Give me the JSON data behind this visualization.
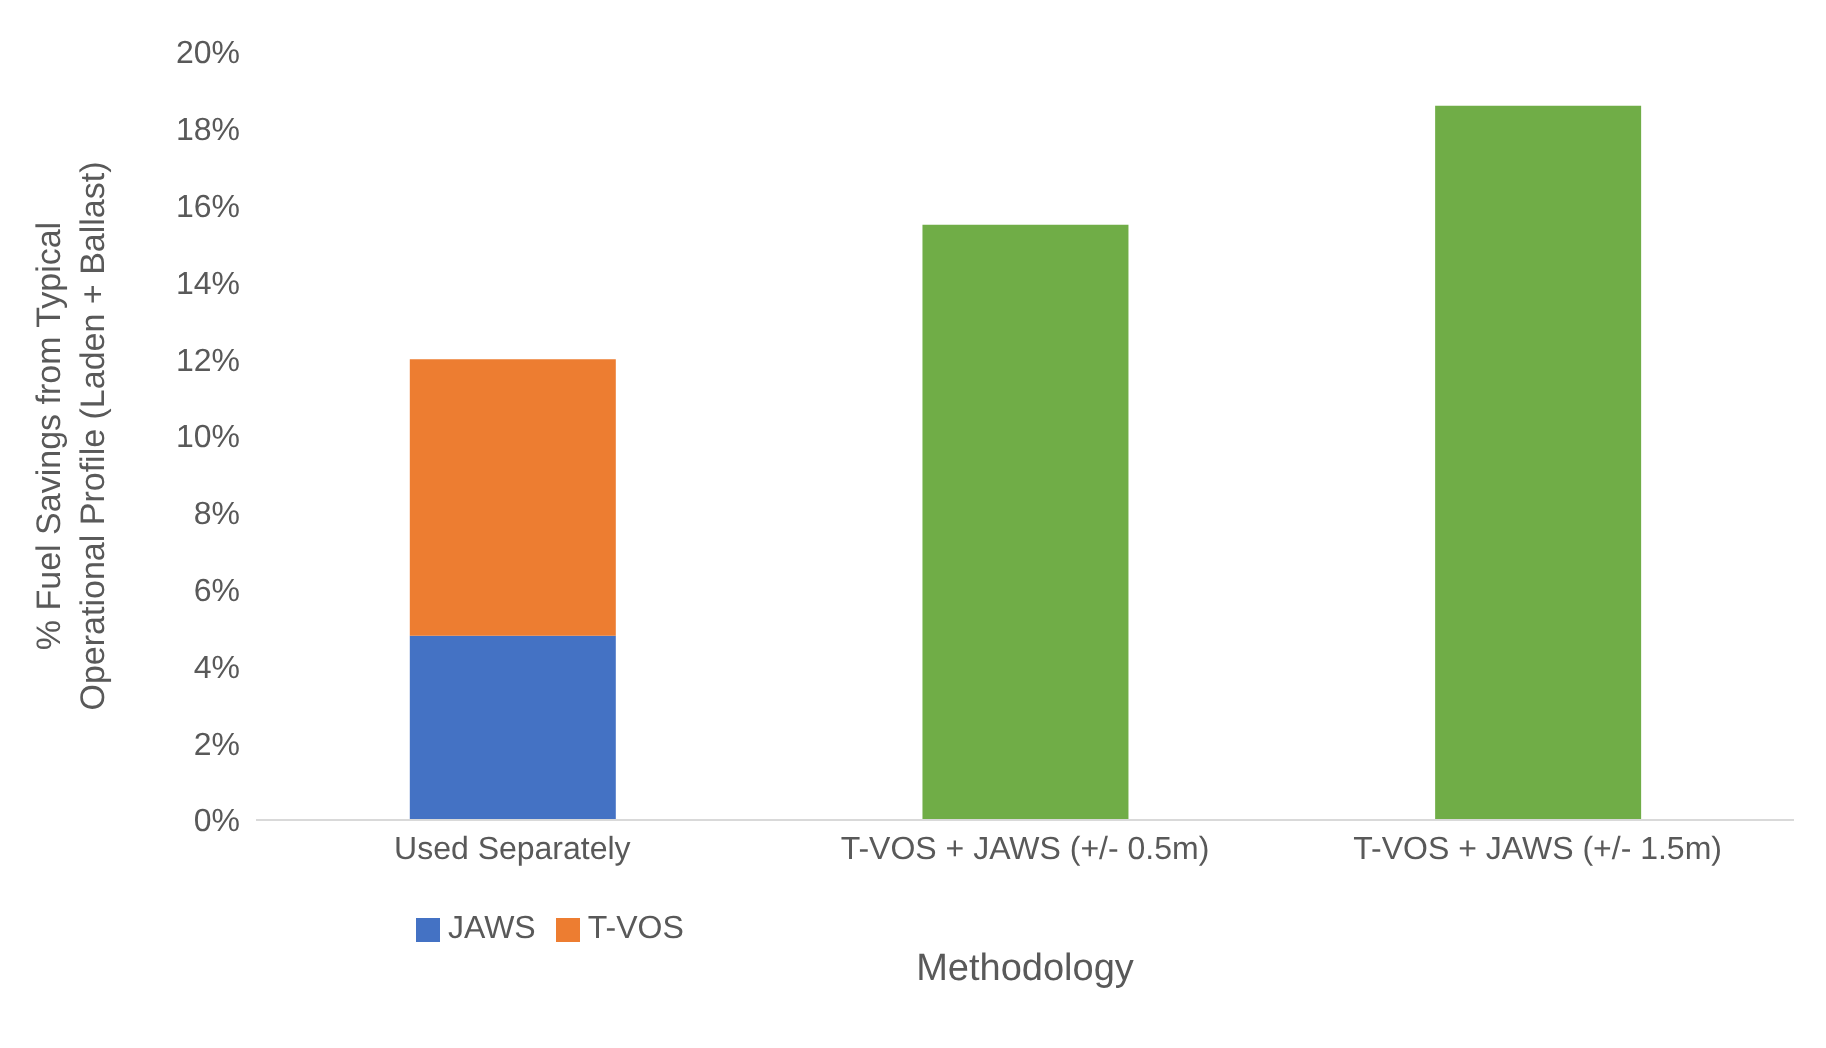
{
  "chart_data": {
    "type": "bar",
    "stacked": true,
    "xlabel": "Methodology",
    "ylabel": "% Fuel Savings from Typical Operational Profile (Laden + Ballast)",
    "categories": [
      "Used Separately",
      "T-VOS + JAWS (+/- 0.5m)",
      "T-VOS + JAWS (+/- 1.5m)"
    ],
    "series": [
      {
        "name": "JAWS",
        "color": "#4472c4",
        "values": [
          4.8,
          null,
          null
        ]
      },
      {
        "name": "T-VOS",
        "color": "#ed7d31",
        "values": [
          7.2,
          null,
          null
        ]
      },
      {
        "color": "#70ad47",
        "values": [
          null,
          15.5,
          18.6
        ]
      }
    ],
    "ylim": [
      0,
      20
    ],
    "yticks": [
      {
        "value": 0,
        "label": "0%"
      },
      {
        "value": 2,
        "label": "2%"
      },
      {
        "value": 4,
        "label": "4%"
      },
      {
        "value": 6,
        "label": "6%"
      },
      {
        "value": 8,
        "label": "8%"
      },
      {
        "value": 10,
        "label": "10%"
      },
      {
        "value": 12,
        "label": "12%"
      },
      {
        "value": 14,
        "label": "14%"
      },
      {
        "value": 16,
        "label": "16%"
      },
      {
        "value": 18,
        "label": "18%"
      },
      {
        "value": 20,
        "label": "20%"
      }
    ],
    "grid": false,
    "legend": "bottom"
  }
}
